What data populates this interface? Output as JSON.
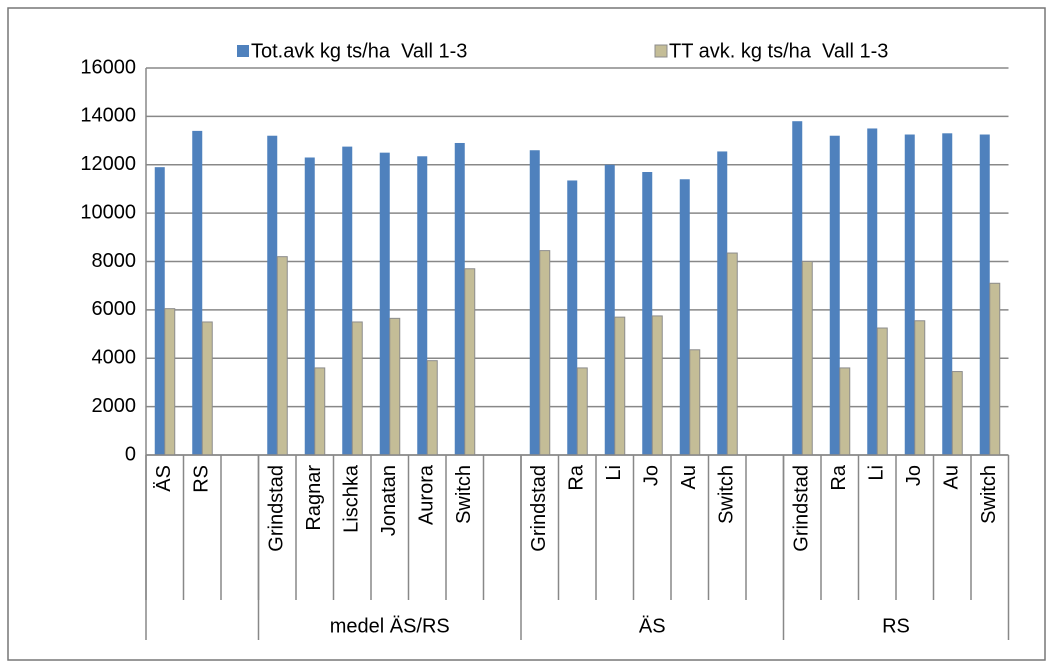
{
  "chart_data": {
    "type": "bar",
    "categories": [
      "ÄS",
      "RS",
      null,
      "Grindstad",
      "Ragnar",
      "Lischka",
      "Jonatan",
      "Aurora",
      "Switch",
      null,
      "Grindstad",
      "Ra",
      "Li",
      "Jo",
      "Au",
      "Switch",
      null,
      "Grindstad",
      "Ra",
      "Li",
      "Jo",
      "Au",
      "Switch"
    ],
    "groups": [
      {
        "label": null,
        "span": 3
      },
      {
        "label": "medel ÄS/RS",
        "span": 7
      },
      {
        "label": "ÄS",
        "span": 7
      },
      {
        "label": "RS",
        "span": 6
      }
    ],
    "series": [
      {
        "name": "Tot.avk kg ts/ha  Vall 1-3",
        "color": "#4f81bd",
        "values": [
          11900,
          13400,
          null,
          13200,
          12300,
          12750,
          12500,
          12350,
          12900,
          null,
          12600,
          11350,
          12000,
          11700,
          11400,
          12550,
          null,
          13800,
          13200,
          13500,
          13250,
          13300,
          13250
        ]
      },
      {
        "name": "TT avk. kg ts/ha  Vall 1-3",
        "color": "#c4bd97",
        "values": [
          6050,
          5500,
          null,
          8200,
          3600,
          5500,
          5650,
          3900,
          7700,
          null,
          8450,
          3600,
          5700,
          5750,
          4350,
          8350,
          null,
          8000,
          3600,
          5250,
          5550,
          3450,
          7100
        ]
      }
    ],
    "ylim": [
      0,
      16000
    ],
    "yticks": [
      0,
      2000,
      4000,
      6000,
      8000,
      10000,
      12000,
      14000,
      16000
    ],
    "grid": true,
    "legend": "top"
  }
}
